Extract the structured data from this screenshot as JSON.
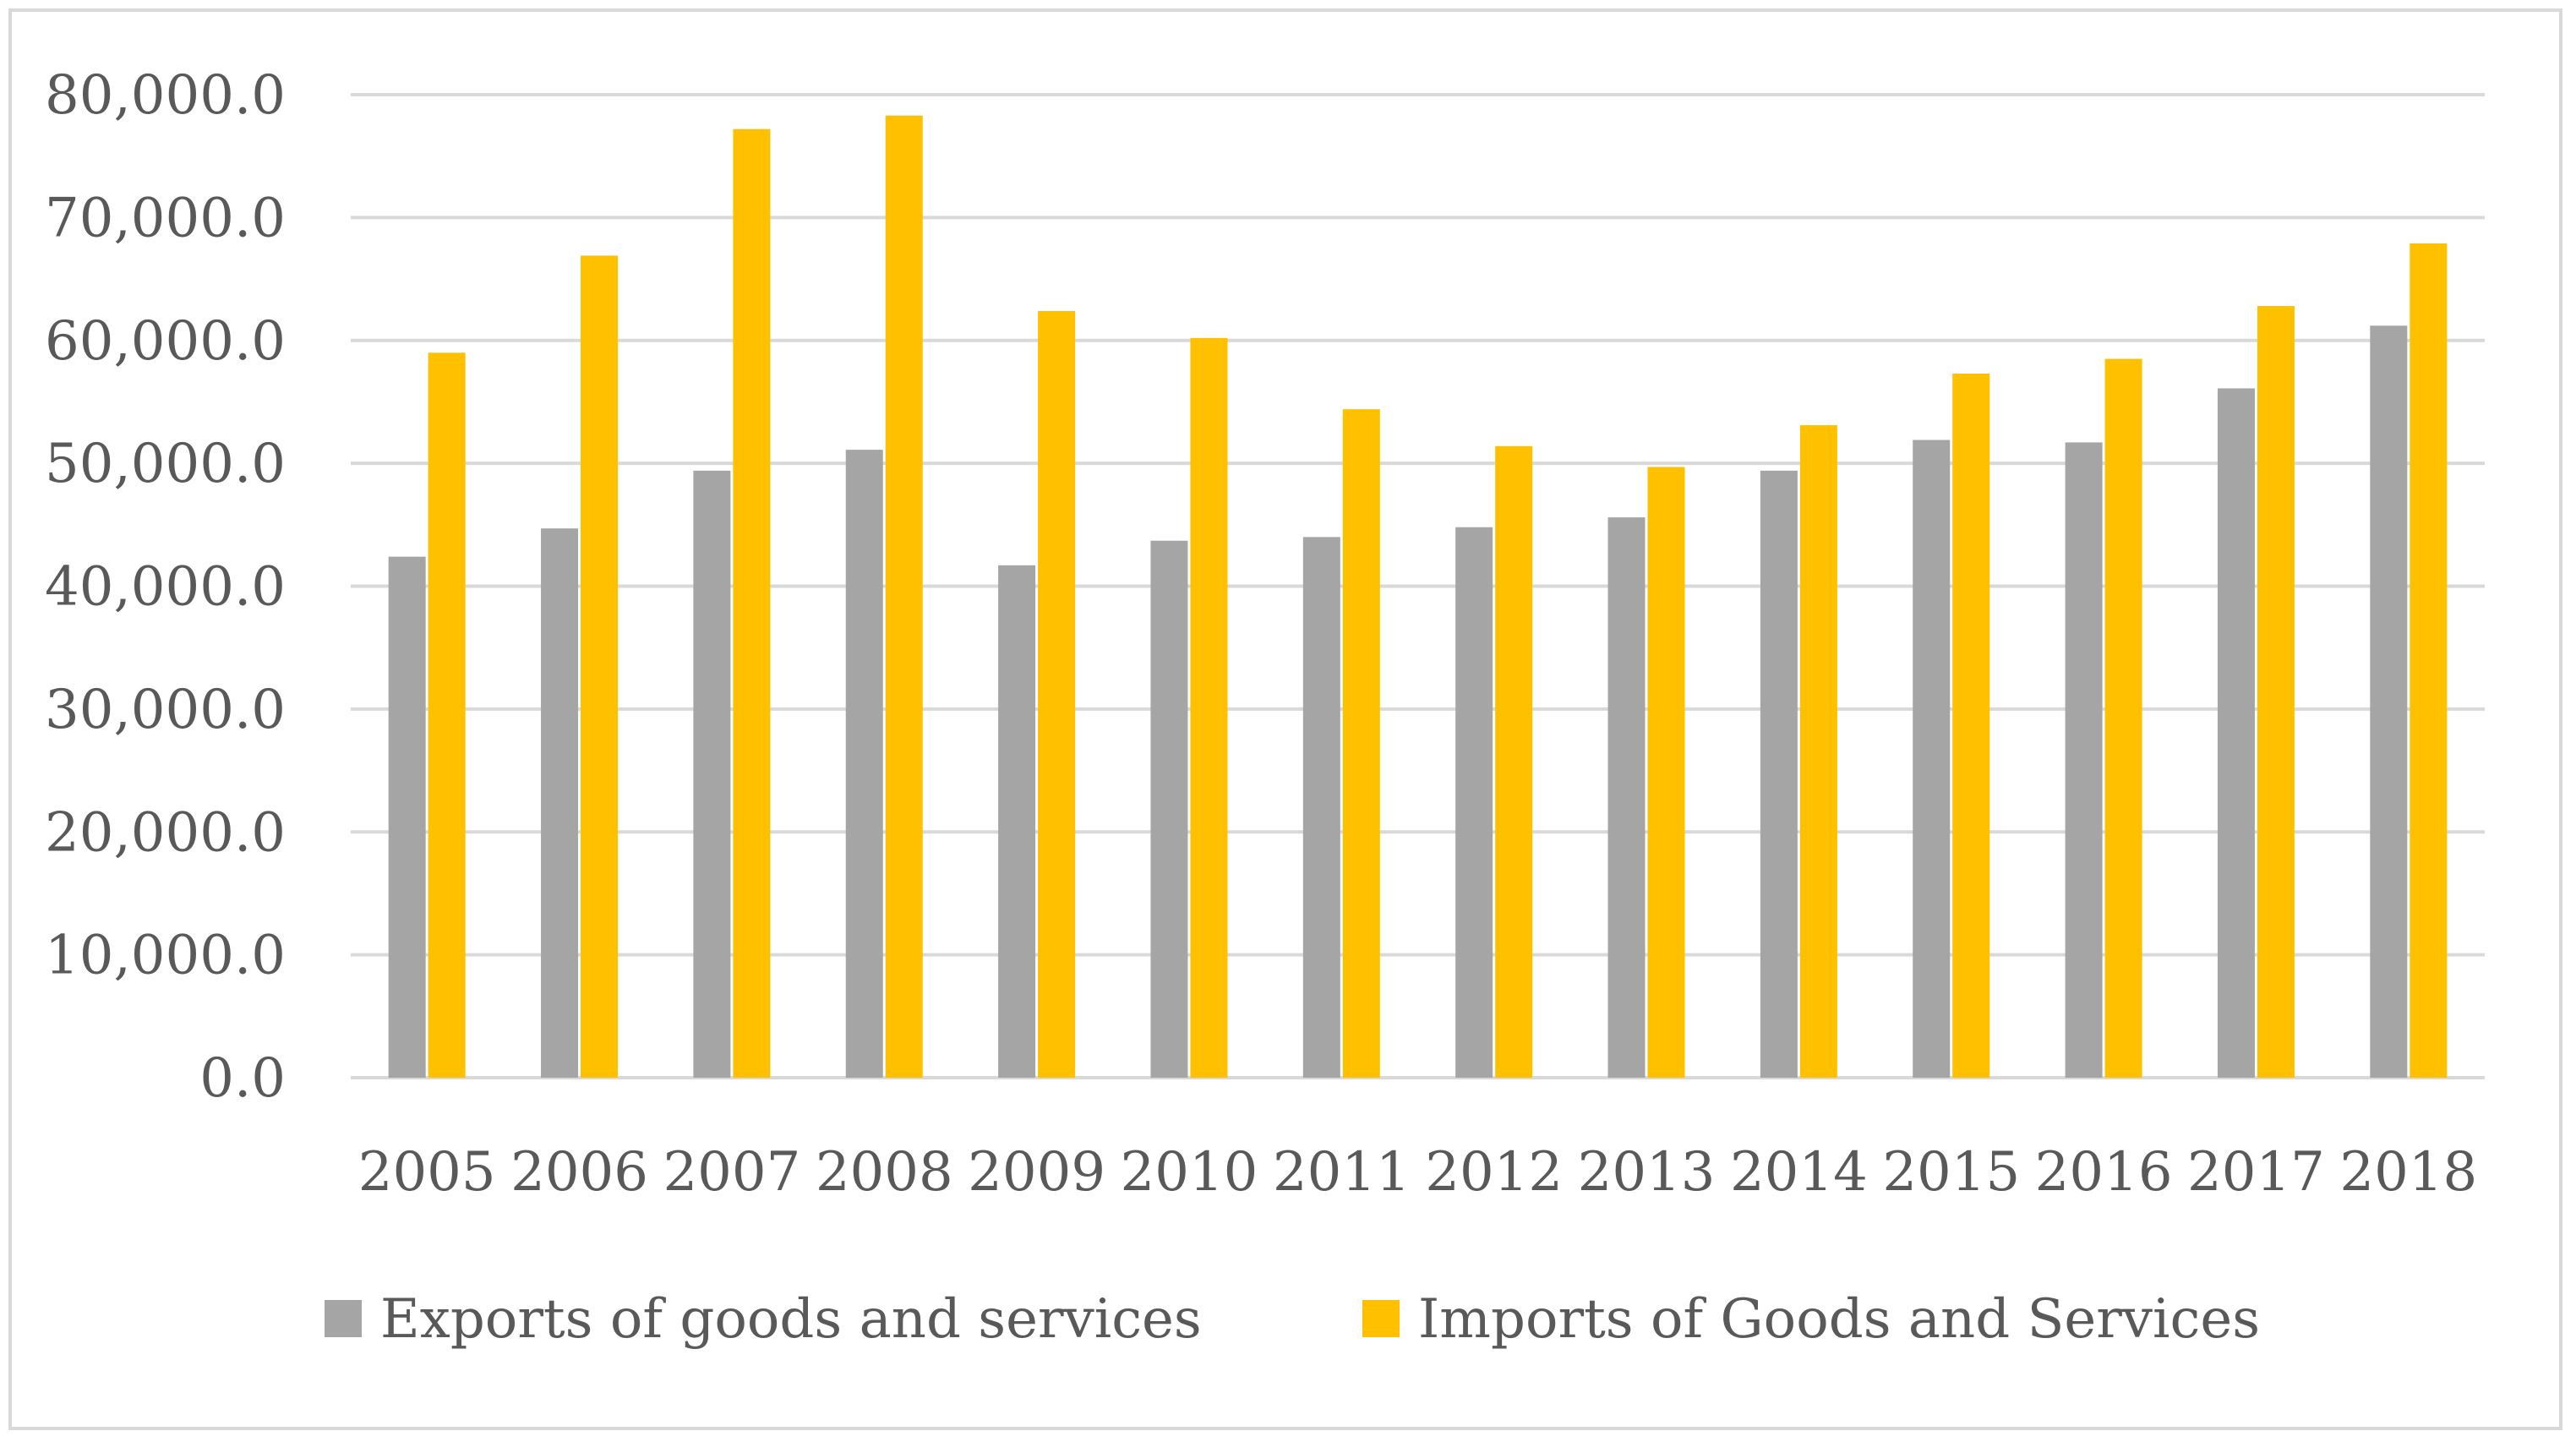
{
  "chart_data": {
    "type": "bar",
    "title": "",
    "xlabel": "",
    "ylabel": "",
    "ylim": [
      0,
      80000
    ],
    "yticks": [
      0,
      10000,
      20000,
      30000,
      40000,
      50000,
      60000,
      70000,
      80000
    ],
    "ytick_labels": [
      "0.0",
      "10,000.0",
      "20,000.0",
      "30,000.0",
      "40,000.0",
      "50,000.0",
      "60,000.0",
      "70,000.0",
      "80,000.0"
    ],
    "grid": true,
    "legend_position": "bottom",
    "categories": [
      "2005",
      "2006",
      "2007",
      "2008",
      "2009",
      "2010",
      "2011",
      "2012",
      "2013",
      "2014",
      "2015",
      "2016",
      "2017",
      "2018"
    ],
    "series": [
      {
        "name": "Exports of goods and services",
        "color": "#a5a5a5",
        "values": [
          42400,
          44700,
          49400,
          51100,
          41700,
          43700,
          44000,
          44800,
          45600,
          49400,
          51900,
          51700,
          56100,
          61200
        ]
      },
      {
        "name": "Imports of Goods and Services",
        "color": "#ffc000",
        "values": [
          59000,
          66900,
          77200,
          78300,
          62400,
          60200,
          54400,
          51400,
          49700,
          53100,
          57300,
          58500,
          62800,
          67900
        ]
      }
    ]
  }
}
